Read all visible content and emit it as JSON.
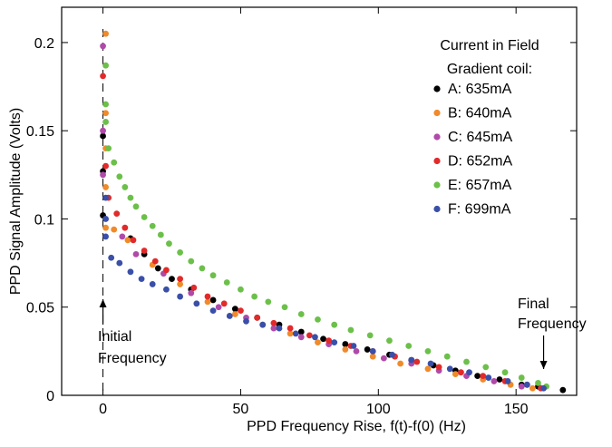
{
  "chart_data": {
    "type": "scatter",
    "title": "",
    "xlabel": "PPD Frequency Rise, f(t)-f(0)  (Hz)",
    "ylabel": "PPD Signal Amplitude  (Volts)",
    "xlim": [
      -15,
      172
    ],
    "ylim": [
      0,
      0.22
    ],
    "xticks": [
      0,
      50,
      100,
      150
    ],
    "xtick_labels": [
      "0",
      "50",
      "100",
      "150"
    ],
    "yticks": [
      0,
      0.05,
      0.1,
      0.15,
      0.2
    ],
    "ytick_labels": [
      "0",
      "0.05",
      "0.1",
      "0.15",
      "0.2"
    ],
    "grid": false,
    "legend": {
      "position": "top-right",
      "title_line1": "Current in Field",
      "title_line2": "Gradient coil:"
    },
    "annotations": [
      {
        "text_line1": "Initial",
        "text_line2": "Frequency",
        "arrow_at_x": 0
      },
      {
        "text_line1": "Final",
        "text_line2": "Frequency",
        "arrow_at_x": 160
      }
    ],
    "series": [
      {
        "name": "A: 635mA",
        "color": "#000000",
        "points": [
          [
            0,
            0.147
          ],
          [
            0,
            0.127
          ],
          [
            0,
            0.102
          ],
          [
            10,
            0.089
          ],
          [
            15,
            0.08
          ],
          [
            20,
            0.072
          ],
          [
            25,
            0.066
          ],
          [
            32,
            0.06
          ],
          [
            40,
            0.054
          ],
          [
            48,
            0.049
          ],
          [
            56,
            0.044
          ],
          [
            64,
            0.04
          ],
          [
            72,
            0.036
          ],
          [
            80,
            0.032
          ],
          [
            88,
            0.029
          ],
          [
            96,
            0.026
          ],
          [
            104,
            0.023
          ],
          [
            112,
            0.02
          ],
          [
            120,
            0.017
          ],
          [
            128,
            0.014
          ],
          [
            136,
            0.011
          ],
          [
            144,
            0.009
          ],
          [
            152,
            0.006
          ],
          [
            158,
            0.005
          ],
          [
            167,
            0.003
          ]
        ]
      },
      {
        "name": "B: 640mA",
        "color": "#f08a2a",
        "points": [
          [
            1,
            0.205
          ],
          [
            1,
            0.16
          ],
          [
            1,
            0.14
          ],
          [
            1,
            0.118
          ],
          [
            1,
            0.095
          ],
          [
            4,
            0.094
          ],
          [
            9,
            0.088
          ],
          [
            18,
            0.074
          ],
          [
            28,
            0.063
          ],
          [
            38,
            0.053
          ],
          [
            48,
            0.046
          ],
          [
            58,
            0.04
          ],
          [
            68,
            0.035
          ],
          [
            78,
            0.03
          ],
          [
            88,
            0.026
          ],
          [
            98,
            0.022
          ],
          [
            108,
            0.018
          ],
          [
            118,
            0.015
          ],
          [
            128,
            0.012
          ],
          [
            138,
            0.009
          ],
          [
            148,
            0.006
          ],
          [
            156,
            0.004
          ]
        ]
      },
      {
        "name": "C: 645mA",
        "color": "#b04aa8",
        "points": [
          [
            0,
            0.198
          ],
          [
            0,
            0.15
          ],
          [
            0,
            0.125
          ],
          [
            7,
            0.09
          ],
          [
            12,
            0.08
          ],
          [
            22,
            0.069
          ],
          [
            32,
            0.058
          ],
          [
            42,
            0.05
          ],
          [
            52,
            0.044
          ],
          [
            62,
            0.038
          ],
          [
            72,
            0.033
          ],
          [
            82,
            0.029
          ],
          [
            92,
            0.025
          ],
          [
            102,
            0.021
          ],
          [
            112,
            0.018
          ],
          [
            122,
            0.014
          ],
          [
            132,
            0.011
          ],
          [
            142,
            0.008
          ],
          [
            152,
            0.005
          ]
        ]
      },
      {
        "name": "D: 652mA",
        "color": "#e22a2a",
        "points": [
          [
            0,
            0.181
          ],
          [
            1,
            0.13
          ],
          [
            2,
            0.112
          ],
          [
            5,
            0.103
          ],
          [
            8,
            0.095
          ],
          [
            11,
            0.088
          ],
          [
            15,
            0.082
          ],
          [
            19,
            0.076
          ],
          [
            23,
            0.071
          ],
          [
            28,
            0.066
          ],
          [
            33,
            0.061
          ],
          [
            38,
            0.056
          ],
          [
            44,
            0.052
          ],
          [
            50,
            0.048
          ],
          [
            56,
            0.044
          ],
          [
            62,
            0.041
          ],
          [
            68,
            0.038
          ],
          [
            75,
            0.034
          ],
          [
            82,
            0.031
          ],
          [
            90,
            0.028
          ],
          [
            98,
            0.025
          ],
          [
            106,
            0.022
          ],
          [
            114,
            0.019
          ],
          [
            122,
            0.016
          ],
          [
            130,
            0.013
          ],
          [
            138,
            0.011
          ],
          [
            146,
            0.008
          ],
          [
            154,
            0.006
          ],
          [
            159,
            0.004
          ]
        ]
      },
      {
        "name": "E: 657mA",
        "color": "#6cc04a",
        "points": [
          [
            1,
            0.187
          ],
          [
            1,
            0.165
          ],
          [
            1,
            0.155
          ],
          [
            2,
            0.14
          ],
          [
            4,
            0.132
          ],
          [
            6,
            0.124
          ],
          [
            8,
            0.118
          ],
          [
            10,
            0.112
          ],
          [
            12,
            0.107
          ],
          [
            15,
            0.101
          ],
          [
            18,
            0.096
          ],
          [
            21,
            0.091
          ],
          [
            24,
            0.086
          ],
          [
            28,
            0.081
          ],
          [
            32,
            0.076
          ],
          [
            36,
            0.072
          ],
          [
            40,
            0.068
          ],
          [
            45,
            0.064
          ],
          [
            50,
            0.06
          ],
          [
            55,
            0.056
          ],
          [
            60,
            0.053
          ],
          [
            66,
            0.05
          ],
          [
            72,
            0.046
          ],
          [
            78,
            0.043
          ],
          [
            84,
            0.04
          ],
          [
            90,
            0.037
          ],
          [
            97,
            0.034
          ],
          [
            104,
            0.031
          ],
          [
            111,
            0.028
          ],
          [
            118,
            0.025
          ],
          [
            125,
            0.022
          ],
          [
            132,
            0.019
          ],
          [
            139,
            0.016
          ],
          [
            146,
            0.013
          ],
          [
            152,
            0.01
          ],
          [
            158,
            0.007
          ],
          [
            161,
            0.005
          ]
        ]
      },
      {
        "name": "F: 699mA",
        "color": "#3a4fa8",
        "points": [
          [
            1,
            0.112
          ],
          [
            1,
            0.1
          ],
          [
            1,
            0.09
          ],
          [
            3,
            0.078
          ],
          [
            6,
            0.075
          ],
          [
            10,
            0.07
          ],
          [
            14,
            0.066
          ],
          [
            18,
            0.063
          ],
          [
            23,
            0.06
          ],
          [
            28,
            0.056
          ],
          [
            34,
            0.052
          ],
          [
            40,
            0.048
          ],
          [
            46,
            0.045
          ],
          [
            52,
            0.042
          ],
          [
            58,
            0.04
          ],
          [
            64,
            0.038
          ],
          [
            70,
            0.035
          ],
          [
            77,
            0.033
          ],
          [
            84,
            0.03
          ],
          [
            91,
            0.028
          ],
          [
            98,
            0.025
          ],
          [
            105,
            0.023
          ],
          [
            112,
            0.02
          ],
          [
            119,
            0.018
          ],
          [
            126,
            0.015
          ],
          [
            133,
            0.013
          ],
          [
            140,
            0.01
          ],
          [
            147,
            0.008
          ],
          [
            154,
            0.006
          ],
          [
            160,
            0.004
          ]
        ]
      }
    ]
  }
}
